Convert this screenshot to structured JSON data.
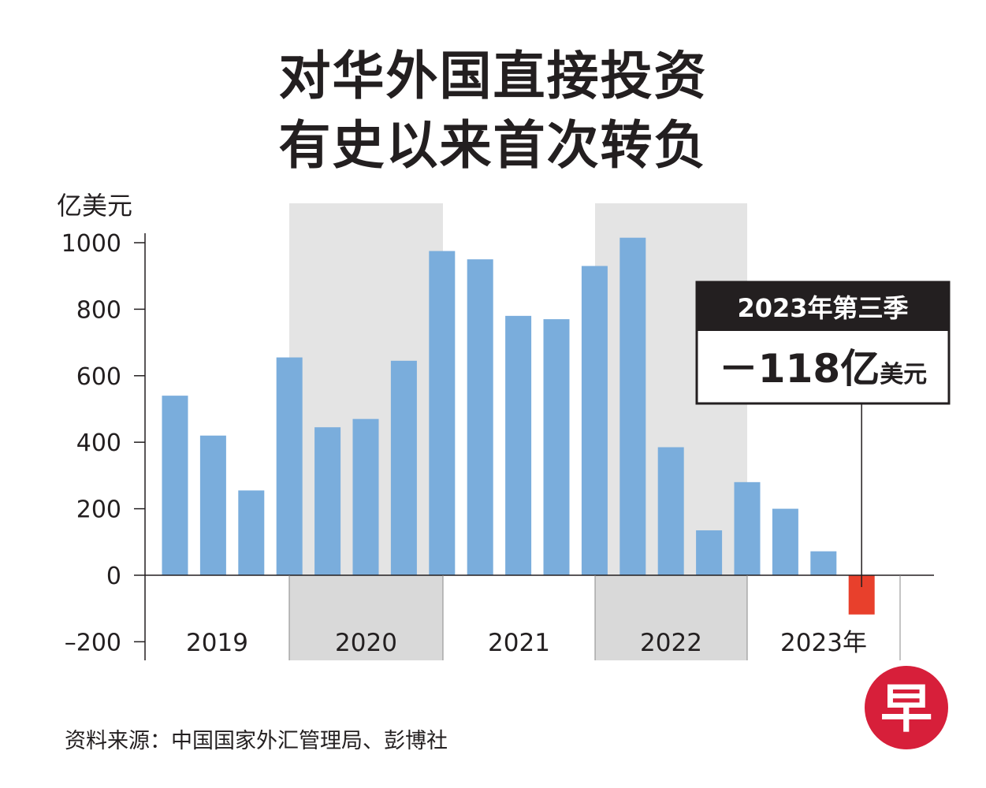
{
  "title_lines": [
    "对华外国直接投资",
    "有史以来首次转负"
  ],
  "source": "资料来源：中国国家外汇管理局、彭博社",
  "logo_char": "早",
  "colors": {
    "bar": "#7aaddc",
    "negative": "#e8402c",
    "shade": "#e4e4e4",
    "text": "#231f20",
    "logo": "#d71f3a"
  },
  "chart_data": {
    "type": "bar",
    "ylabel": "亿美元",
    "ylim": [
      -200,
      1000
    ],
    "yticks": [
      1000,
      800,
      600,
      400,
      200,
      0,
      -200
    ],
    "ytick_labels": [
      "1000",
      "800",
      "600",
      "400",
      "200",
      "0",
      "–200"
    ],
    "year_labels": [
      "2019",
      "2020",
      "2021",
      "2022",
      "2023年"
    ],
    "shaded_years": [
      "2020",
      "2022"
    ],
    "categories": [
      "2019Q1",
      "2019Q2",
      "2019Q3",
      "2019Q4",
      "2020Q1",
      "2020Q2",
      "2020Q3",
      "2020Q4",
      "2021Q1",
      "2021Q2",
      "2021Q3",
      "2021Q4",
      "2022Q1",
      "2022Q2",
      "2022Q3",
      "2022Q4",
      "2023Q1",
      "2023Q2",
      "2023Q3"
    ],
    "values": [
      540,
      420,
      255,
      655,
      445,
      470,
      645,
      975,
      950,
      780,
      770,
      930,
      1015,
      385,
      135,
      280,
      200,
      72,
      -118
    ],
    "callout": {
      "header": "2023年第三季",
      "value": "－118亿",
      "unit": "美元",
      "target": "2023Q3"
    }
  }
}
